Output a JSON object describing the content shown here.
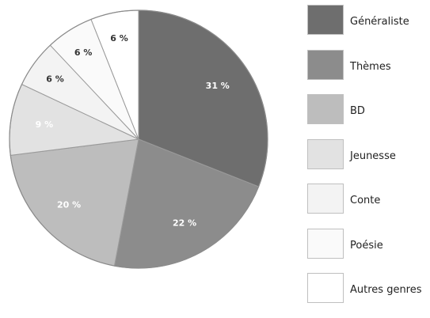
{
  "chart_data": {
    "type": "pie",
    "title": "",
    "categories": [
      "Généraliste",
      "Thèmes",
      "BD",
      "Jeunesse",
      "Conte",
      "Poésie",
      "Autres genres"
    ],
    "values": [
      31,
      22,
      20,
      9,
      6,
      6,
      6
    ],
    "labels": [
      "31 %",
      "22 %",
      "20 %",
      "9 %",
      "6 %",
      "6 %",
      "6 %"
    ],
    "colors": [
      "#6e6e6e",
      "#8c8c8c",
      "#bdbdbd",
      "#e2e2e2",
      "#f3f3f3",
      "#fafafa",
      "#ffffff"
    ],
    "label_colors": [
      "#ffffff",
      "#ffffff",
      "#ffffff",
      "#ffffff",
      "#333333",
      "#333333",
      "#333333"
    ],
    "start_angle_deg": 0,
    "direction": "clockwise",
    "legend_position": "right"
  }
}
